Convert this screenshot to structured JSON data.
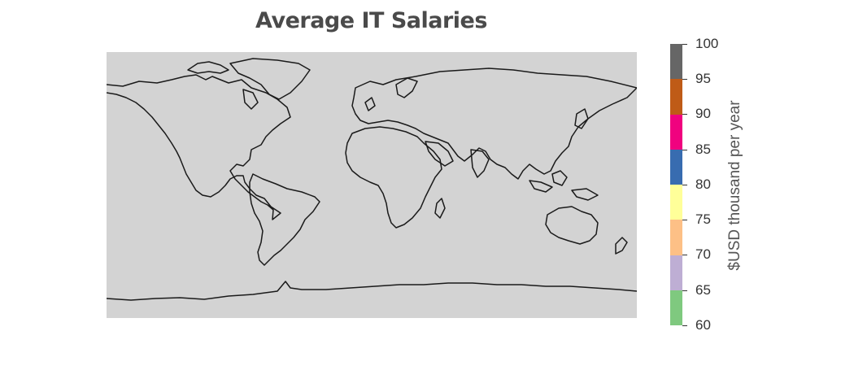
{
  "title": "Average IT Salaries",
  "map": {
    "projection": "equirectangular",
    "ocean_color": "#d3d3d3",
    "coastline_color": "#1a1a1a"
  },
  "colorbar": {
    "label": "$USD thousand per year",
    "ticks": [
      "60",
      "65",
      "70",
      "75",
      "80",
      "85",
      "90",
      "95",
      "100"
    ],
    "bins": [
      {
        "from": 60,
        "to": 65,
        "color": "#7fc97f"
      },
      {
        "from": 65,
        "to": 70,
        "color": "#beaed4"
      },
      {
        "from": 70,
        "to": 75,
        "color": "#fdc086"
      },
      {
        "from": 75,
        "to": 80,
        "color": "#ffff99"
      },
      {
        "from": 80,
        "to": 85,
        "color": "#386cb0"
      },
      {
        "from": 85,
        "to": 90,
        "color": "#f0027f"
      },
      {
        "from": 90,
        "to": 95,
        "color": "#bf5b17"
      },
      {
        "from": 95,
        "to": 100,
        "color": "#666666"
      }
    ]
  }
}
